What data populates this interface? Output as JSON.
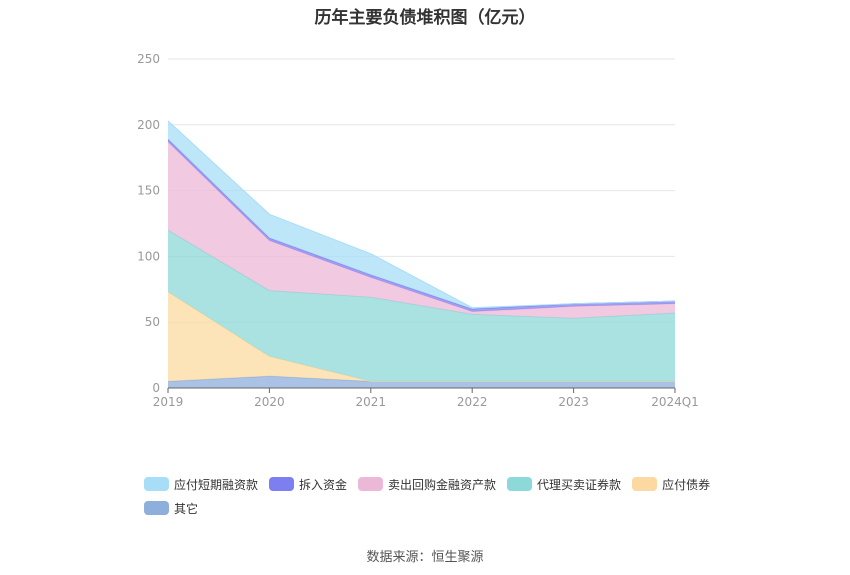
{
  "chart_data": {
    "type": "area",
    "title": "历年主要负债堆积图（亿元）",
    "stacked": true,
    "categories": [
      "2019",
      "2020",
      "2021",
      "2022",
      "2023",
      "2024Q1"
    ],
    "ylim": [
      0,
      250
    ],
    "yticks": [
      0,
      50,
      100,
      150,
      200,
      250
    ],
    "grid": true,
    "legend_position": "bottom",
    "series": [
      {
        "name": "其它",
        "color": "#8eaedc",
        "values": [
          5,
          9,
          5,
          5,
          5,
          5
        ]
      },
      {
        "name": "应付债券",
        "color": "#fcd9a0",
        "values": [
          68,
          15,
          0,
          0,
          0,
          0
        ]
      },
      {
        "name": "代理买卖证券款",
        "color": "#8dd8d8",
        "values": [
          47,
          50,
          64,
          51,
          48,
          52
        ]
      },
      {
        "name": "卖出回购金融资产款",
        "color": "#ecb8d8",
        "values": [
          67,
          38,
          15,
          2,
          9,
          7
        ]
      },
      {
        "name": "拆入资金",
        "color": "#7d7ef0",
        "values": [
          2,
          2,
          2,
          2,
          2,
          2
        ]
      },
      {
        "name": "应付短期融资款",
        "color": "#a8ddf7",
        "values": [
          14,
          18,
          16,
          1,
          0,
          0
        ]
      }
    ],
    "legend_order": [
      "应付短期融资款",
      "拆入资金",
      "卖出回购金融资产款",
      "代理买卖证券款",
      "应付债券",
      "其它"
    ]
  },
  "footer": {
    "source": "数据来源：恒生聚源"
  }
}
